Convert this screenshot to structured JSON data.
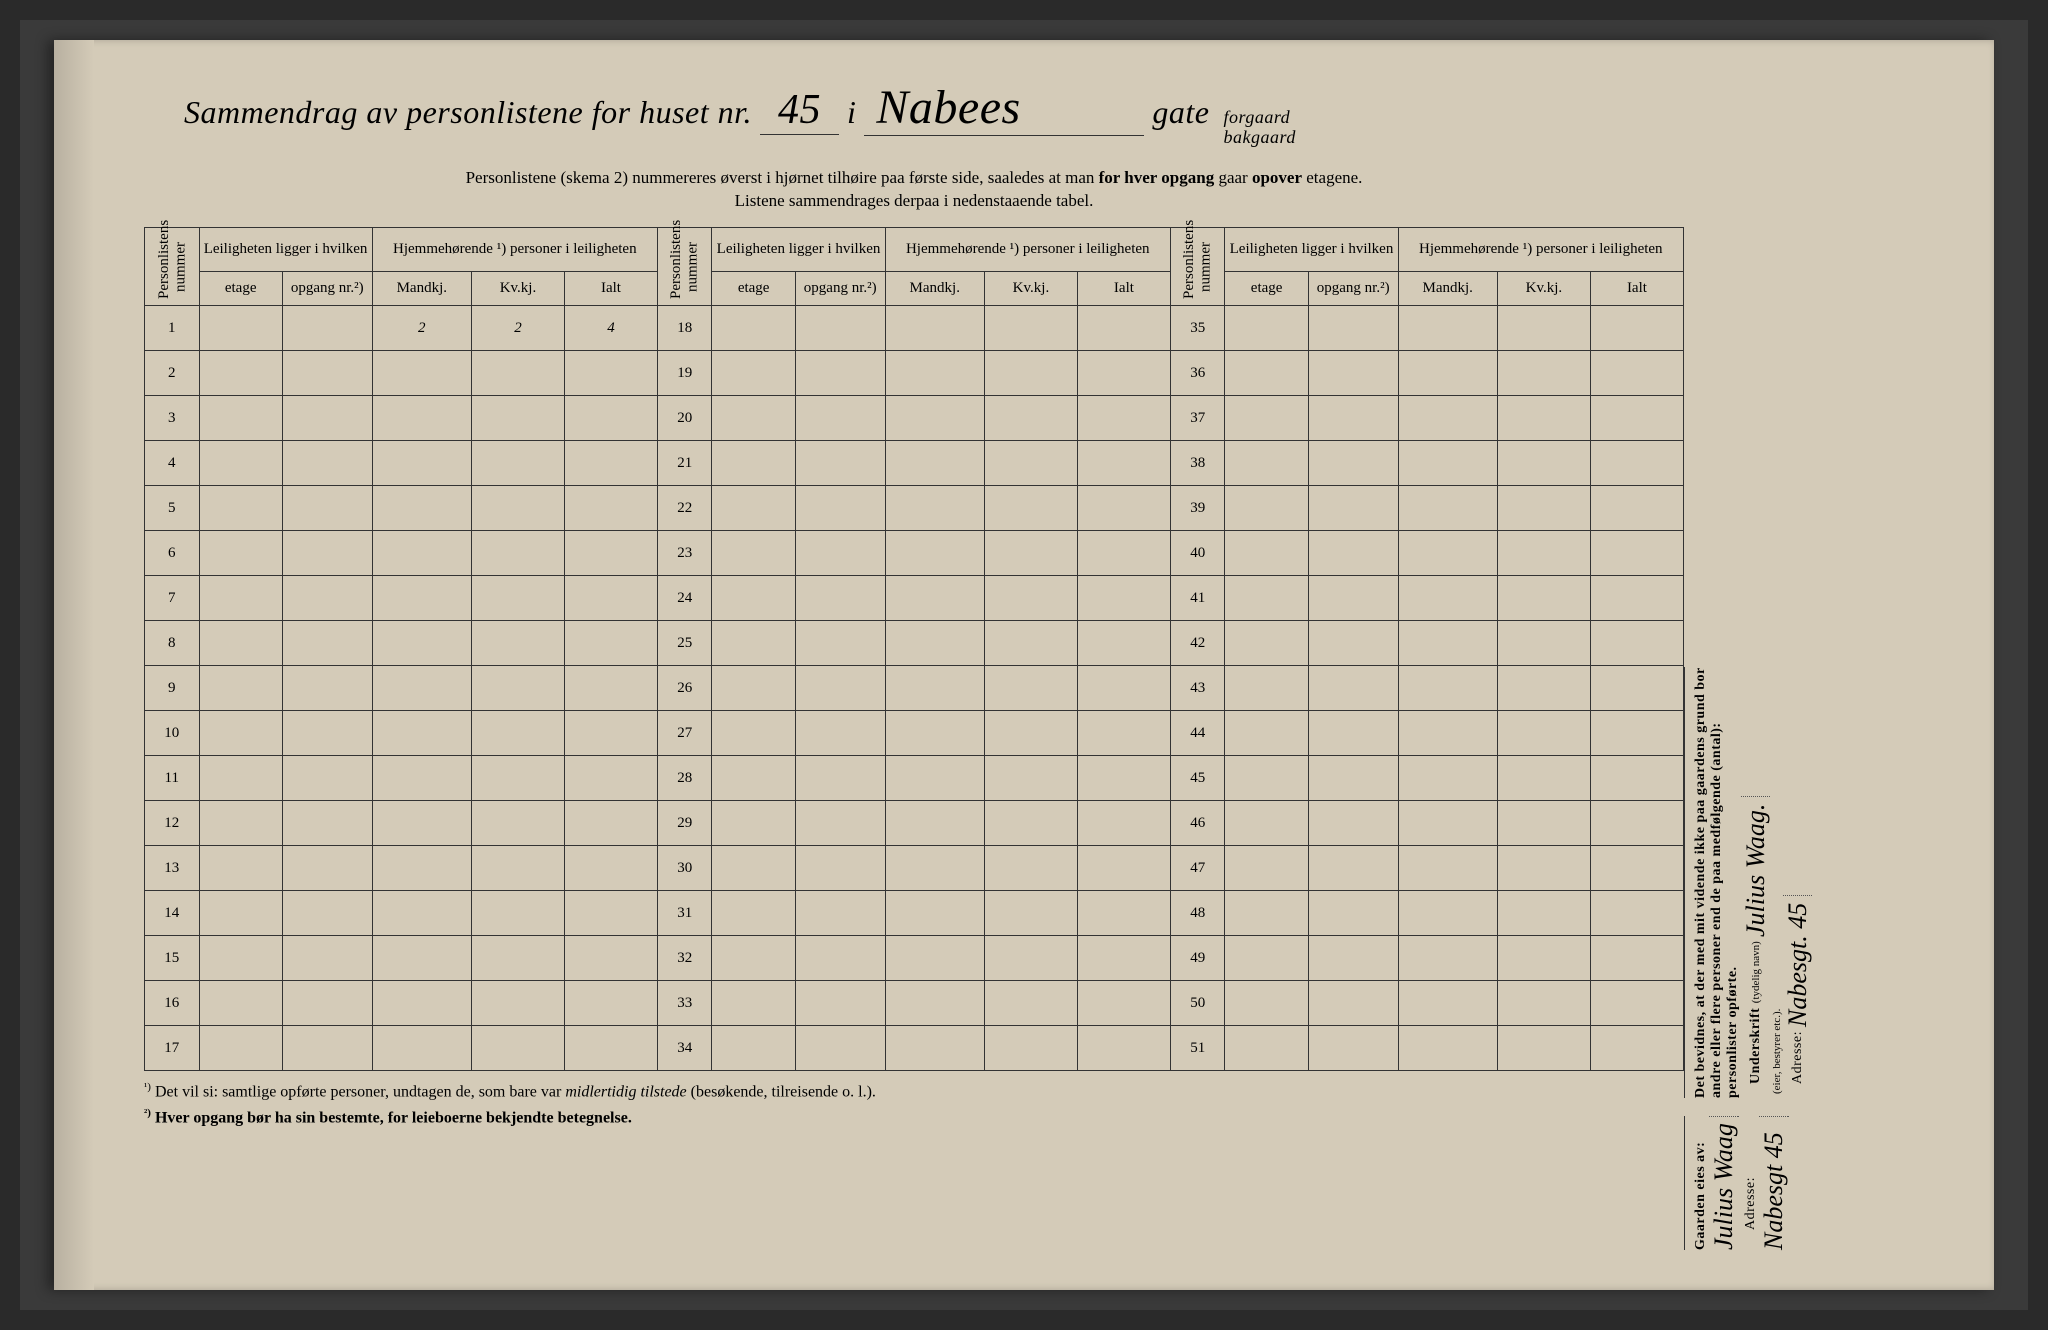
{
  "title": {
    "prefix": "Sammendrag av personlistene for huset nr.",
    "house_no": "45",
    "infix": "i",
    "street_name": "Nabees",
    "suffix": "gate",
    "stack_top": "forgaard",
    "stack_bot": "bakgaard"
  },
  "instructions": {
    "line1_a": "Personlistene (skema 2) nummereres øverst i hjørnet tilhøire paa første side, saaledes at man ",
    "line1_b": "for hver opgang",
    "line1_c": " gaar ",
    "line1_d": "opover",
    "line1_e": " etagene.",
    "line2": "Listene sammendrages derpaa i nedenstaaende tabel."
  },
  "headers": {
    "pl_num": "Personlistens nummer",
    "leil": "Leiligheten ligger i hvilken",
    "hjem": "Hjemmehørende ¹) personer i leiligheten",
    "etage": "etage",
    "opgang": "opgang nr.²)",
    "mandkj": "Mandkj.",
    "kvkj": "Kv.kj.",
    "ialt": "Ialt"
  },
  "row_numbers_col1": [
    1,
    2,
    3,
    4,
    5,
    6,
    7,
    8,
    9,
    10,
    11,
    12,
    13,
    14,
    15,
    16,
    17
  ],
  "row_numbers_col2": [
    18,
    19,
    20,
    21,
    22,
    23,
    24,
    25,
    26,
    27,
    28,
    29,
    30,
    31,
    32,
    33,
    34
  ],
  "row_numbers_col3": [
    35,
    36,
    37,
    38,
    39,
    40,
    41,
    42,
    43,
    44,
    45,
    46,
    47,
    48,
    49,
    50,
    51
  ],
  "data_row1": {
    "mandkj": "2",
    "kvkj": "2",
    "ialt": "4"
  },
  "footnote1_sup": "¹)",
  "footnote1_a": "Det vil si: samtlige opførte personer, undtagen de, som bare var ",
  "footnote1_b": "midlertidig tilstede",
  "footnote1_c": " (besøkende, tilreisende o. l.).",
  "footnote2_sup": "²)",
  "footnote2": "Hver opgang bør ha sin bestemte, for leieboerne bekjendte betegnelse.",
  "side": {
    "owner_label": "Gaarden eies av:",
    "owner_value": "Julius Waag",
    "adresse_label": "Adresse:",
    "owner_adresse": "Nabesgt 45",
    "decl_a": "Det bevidnes, at der med mit vidende ikke paa gaardens grund bor",
    "decl_b": "andre eller flere personer end de paa medfølgende (antal):",
    "decl_c": "personlister opførte.",
    "sign_label": "Underskrift",
    "sign_hint": "(tydelig navn)",
    "sign_value": "Julius Waag.",
    "role_hint": "(eier, bestyrer etc.).",
    "adresse2": "Nabesgt. 45"
  },
  "colors": {
    "paper": "#d4cbb8",
    "ink": "#2a2a26",
    "hand_ink": "#1a1a18"
  }
}
